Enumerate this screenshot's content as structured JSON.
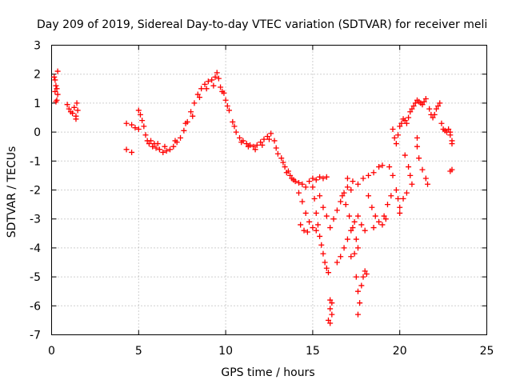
{
  "chart_data": {
    "type": "scatter",
    "title": "Day 209 of 2019, Sidereal Day-to-day VTEC variation (SDTVAR) for receiver meli",
    "xlabel": "GPS time / hours",
    "ylabel": "SDTVAR / TECUs",
    "xlim": [
      0,
      25
    ],
    "ylim": [
      -7,
      3
    ],
    "xticks": [
      "0",
      "5",
      "10",
      "15",
      "20",
      "25"
    ],
    "yticks": [
      "3",
      "2",
      "1",
      "0",
      "-1",
      "-2",
      "-3",
      "-4",
      "-5",
      "-6",
      "-7"
    ],
    "grid": true,
    "marker": "plus",
    "color": "#ff0000",
    "series": [
      {
        "name": "SDTVAR",
        "points": [
          [
            0.15,
            1.9
          ],
          [
            0.2,
            1.8
          ],
          [
            0.25,
            1.6
          ],
          [
            0.3,
            1.5
          ],
          [
            0.35,
            1.3
          ],
          [
            0.3,
            1.1
          ],
          [
            0.35,
            2.1
          ],
          [
            0.2,
            1.4
          ],
          [
            0.25,
            1.05
          ],
          [
            0.9,
            0.95
          ],
          [
            1.0,
            0.8
          ],
          [
            1.1,
            0.7
          ],
          [
            1.2,
            0.65
          ],
          [
            1.3,
            0.85
          ],
          [
            1.4,
            0.55
          ],
          [
            1.45,
            1.0
          ],
          [
            1.5,
            0.75
          ],
          [
            1.4,
            0.45
          ],
          [
            4.3,
            0.3
          ],
          [
            4.3,
            -0.6
          ],
          [
            4.6,
            -0.7
          ],
          [
            4.6,
            0.25
          ],
          [
            4.8,
            0.15
          ],
          [
            5.0,
            0.1
          ],
          [
            5.0,
            0.75
          ],
          [
            5.1,
            0.6
          ],
          [
            5.2,
            0.4
          ],
          [
            5.3,
            0.2
          ],
          [
            5.4,
            -0.1
          ],
          [
            5.5,
            -0.3
          ],
          [
            5.6,
            -0.4
          ],
          [
            5.7,
            -0.3
          ],
          [
            5.8,
            -0.5
          ],
          [
            5.9,
            -0.4
          ],
          [
            6.0,
            -0.55
          ],
          [
            6.2,
            -0.6
          ],
          [
            6.4,
            -0.7
          ],
          [
            6.6,
            -0.65
          ],
          [
            6.8,
            -0.6
          ],
          [
            7.0,
            -0.5
          ],
          [
            7.2,
            -0.35
          ],
          [
            7.4,
            -0.2
          ],
          [
            7.6,
            0.05
          ],
          [
            7.8,
            0.35
          ],
          [
            8.0,
            0.7
          ],
          [
            8.2,
            1.0
          ],
          [
            8.4,
            1.3
          ],
          [
            8.6,
            1.5
          ],
          [
            8.8,
            1.65
          ],
          [
            9.0,
            1.75
          ],
          [
            9.2,
            1.8
          ],
          [
            9.4,
            1.9
          ],
          [
            9.5,
            2.05
          ],
          [
            9.6,
            1.85
          ],
          [
            6.1,
            -0.4
          ],
          [
            6.5,
            -0.5
          ],
          [
            7.1,
            -0.3
          ],
          [
            7.7,
            0.3
          ],
          [
            8.1,
            0.55
          ],
          [
            8.5,
            1.2
          ],
          [
            8.9,
            1.5
          ],
          [
            9.3,
            1.6
          ],
          [
            9.7,
            1.55
          ],
          [
            9.9,
            1.35
          ],
          [
            9.8,
            1.4
          ],
          [
            10.0,
            1.1
          ],
          [
            10.2,
            0.75
          ],
          [
            10.4,
            0.35
          ],
          [
            10.6,
            0.0
          ],
          [
            10.8,
            -0.2
          ],
          [
            11.0,
            -0.3
          ],
          [
            11.2,
            -0.4
          ],
          [
            11.4,
            -0.45
          ],
          [
            11.6,
            -0.5
          ],
          [
            11.8,
            -0.45
          ],
          [
            12.0,
            -0.35
          ],
          [
            12.2,
            -0.25
          ],
          [
            12.4,
            -0.15
          ],
          [
            12.6,
            -0.05
          ],
          [
            12.8,
            -0.3
          ],
          [
            12.9,
            -0.55
          ],
          [
            13.0,
            -0.75
          ],
          [
            10.1,
            0.9
          ],
          [
            10.5,
            0.2
          ],
          [
            10.9,
            -0.35
          ],
          [
            11.3,
            -0.5
          ],
          [
            11.7,
            -0.6
          ],
          [
            12.1,
            -0.45
          ],
          [
            12.5,
            -0.25
          ],
          [
            13.2,
            -0.9
          ],
          [
            13.3,
            -1.05
          ],
          [
            13.4,
            -1.2
          ],
          [
            13.5,
            -1.4
          ],
          [
            13.6,
            -1.35
          ],
          [
            13.7,
            -1.5
          ],
          [
            13.8,
            -1.6
          ],
          [
            13.9,
            -1.65
          ],
          [
            14.0,
            -1.7
          ],
          [
            14.2,
            -1.75
          ],
          [
            14.4,
            -1.8
          ],
          [
            14.6,
            -1.9
          ],
          [
            14.8,
            -1.7
          ],
          [
            15.0,
            -1.6
          ],
          [
            15.2,
            -1.65
          ],
          [
            15.4,
            -1.55
          ],
          [
            15.6,
            -1.6
          ],
          [
            15.8,
            -1.55
          ],
          [
            14.2,
            -2.1
          ],
          [
            14.4,
            -2.4
          ],
          [
            14.6,
            -2.8
          ],
          [
            14.8,
            -3.1
          ],
          [
            15.0,
            -3.3
          ],
          [
            15.2,
            -3.4
          ],
          [
            14.3,
            -3.2
          ],
          [
            14.5,
            -3.4
          ],
          [
            14.7,
            -3.45
          ],
          [
            15.0,
            -1.9
          ],
          [
            15.1,
            -2.3
          ],
          [
            15.2,
            -2.8
          ],
          [
            15.3,
            -3.2
          ],
          [
            15.4,
            -3.6
          ],
          [
            15.5,
            -3.9
          ],
          [
            15.6,
            -4.2
          ],
          [
            15.7,
            -4.5
          ],
          [
            15.8,
            -4.7
          ],
          [
            15.9,
            -4.85
          ],
          [
            15.4,
            -2.2
          ],
          [
            15.6,
            -2.6
          ],
          [
            15.8,
            -2.9
          ],
          [
            16.0,
            -3.3
          ],
          [
            16.2,
            -3.0
          ],
          [
            16.4,
            -2.7
          ],
          [
            16.6,
            -2.4
          ],
          [
            16.8,
            -2.1
          ],
          [
            17.0,
            -1.9
          ],
          [
            17.2,
            -2.0
          ],
          [
            16.0,
            -5.8
          ],
          [
            16.0,
            -6.1
          ],
          [
            16.1,
            -6.3
          ],
          [
            15.9,
            -6.5
          ],
          [
            16.0,
            -6.6
          ],
          [
            16.1,
            -5.9
          ],
          [
            16.4,
            -4.5
          ],
          [
            16.6,
            -4.3
          ],
          [
            16.8,
            -4.0
          ],
          [
            17.0,
            -3.7
          ],
          [
            17.2,
            -3.4
          ],
          [
            17.4,
            -3.1
          ],
          [
            17.6,
            -2.9
          ],
          [
            17.8,
            -3.2
          ],
          [
            18.0,
            -3.4
          ],
          [
            16.7,
            -2.2
          ],
          [
            16.9,
            -2.5
          ],
          [
            17.1,
            -2.9
          ],
          [
            17.3,
            -3.3
          ],
          [
            17.5,
            -3.7
          ],
          [
            17.6,
            -4.0
          ],
          [
            17.4,
            -4.2
          ],
          [
            17.2,
            -4.3
          ],
          [
            17.5,
            -5.0
          ],
          [
            17.6,
            -5.5
          ],
          [
            17.7,
            -5.9
          ],
          [
            17.6,
            -6.3
          ],
          [
            17.8,
            -5.3
          ],
          [
            17.9,
            -5.0
          ],
          [
            18.0,
            -4.8
          ],
          [
            18.1,
            -4.9
          ],
          [
            17.0,
            -1.6
          ],
          [
            17.3,
            -1.7
          ],
          [
            17.6,
            -1.8
          ],
          [
            17.9,
            -1.6
          ],
          [
            18.2,
            -1.5
          ],
          [
            18.5,
            -1.4
          ],
          [
            18.8,
            -1.2
          ],
          [
            19.0,
            -1.15
          ],
          [
            18.2,
            -2.2
          ],
          [
            18.4,
            -2.6
          ],
          [
            18.6,
            -2.9
          ],
          [
            18.8,
            -3.1
          ],
          [
            19.0,
            -3.2
          ],
          [
            19.2,
            -3.0
          ],
          [
            18.5,
            -3.3
          ],
          [
            19.4,
            -1.2
          ],
          [
            19.6,
            -1.5
          ],
          [
            19.8,
            -2.0
          ],
          [
            19.9,
            -2.3
          ],
          [
            20.0,
            -2.6
          ],
          [
            20.0,
            -2.8
          ],
          [
            19.5,
            -2.2
          ],
          [
            19.3,
            -2.5
          ],
          [
            19.1,
            -2.9
          ],
          [
            19.6,
            0.1
          ],
          [
            19.7,
            -0.2
          ],
          [
            19.8,
            -0.4
          ],
          [
            19.9,
            -0.1
          ],
          [
            20.0,
            0.2
          ],
          [
            20.1,
            0.3
          ],
          [
            20.2,
            0.45
          ],
          [
            20.3,
            0.4
          ],
          [
            20.4,
            0.3
          ],
          [
            20.5,
            0.5
          ],
          [
            20.6,
            0.7
          ],
          [
            20.7,
            0.8
          ],
          [
            20.8,
            0.9
          ],
          [
            20.9,
            1.0
          ],
          [
            21.0,
            1.1
          ],
          [
            21.1,
            1.05
          ],
          [
            21.2,
            1.0
          ],
          [
            21.3,
            0.95
          ],
          [
            21.4,
            1.05
          ],
          [
            21.5,
            1.15
          ],
          [
            20.3,
            -0.8
          ],
          [
            20.5,
            -1.2
          ],
          [
            20.6,
            -1.5
          ],
          [
            20.7,
            -1.8
          ],
          [
            20.4,
            -2.1
          ],
          [
            20.2,
            -2.3
          ],
          [
            21.0,
            -0.5
          ],
          [
            21.1,
            -0.9
          ],
          [
            21.3,
            -1.3
          ],
          [
            21.5,
            -1.6
          ],
          [
            21.6,
            -1.8
          ],
          [
            21.0,
            -0.2
          ],
          [
            21.7,
            0.8
          ],
          [
            21.8,
            0.6
          ],
          [
            21.9,
            0.5
          ],
          [
            22.0,
            0.6
          ],
          [
            22.1,
            0.8
          ],
          [
            22.2,
            0.9
          ],
          [
            22.3,
            1.0
          ],
          [
            22.4,
            0.3
          ],
          [
            22.5,
            0.1
          ],
          [
            22.6,
            0.05
          ],
          [
            22.7,
            0.0
          ],
          [
            22.8,
            0.1
          ],
          [
            22.9,
            -0.1
          ],
          [
            23.0,
            -0.3
          ],
          [
            22.9,
            0.0
          ],
          [
            22.9,
            -1.35
          ],
          [
            23.0,
            -1.3
          ],
          [
            23.0,
            -0.4
          ]
        ]
      }
    ]
  }
}
